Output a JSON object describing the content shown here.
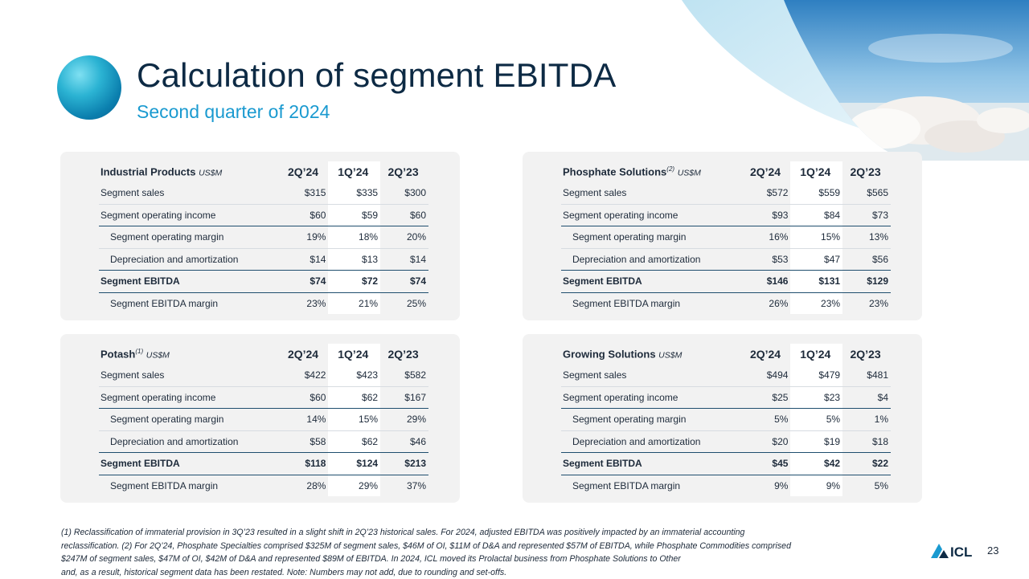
{
  "header": {
    "title": "Calculation of segment EBITDA",
    "subtitle": "Second quarter of 2024"
  },
  "columns": [
    "2Q’24",
    "1Q’24",
    "2Q’23"
  ],
  "unit": "US$M",
  "panels": [
    {
      "name": "Industrial Products",
      "note": "",
      "rows": [
        {
          "label": "Segment sales",
          "values": [
            "$315",
            "$335",
            "$300"
          ]
        },
        {
          "label": "Segment operating income",
          "values": [
            "$60",
            "$59",
            "$60"
          ]
        },
        {
          "label": "Segment operating margin",
          "values": [
            "19%",
            "18%",
            "20%"
          ]
        },
        {
          "label": "Depreciation and amortization",
          "values": [
            "$14",
            "$13",
            "$14"
          ]
        },
        {
          "label": "Segment EBITDA",
          "values": [
            "$74",
            "$72",
            "$74"
          ]
        },
        {
          "label": "Segment EBITDA margin",
          "values": [
            "23%",
            "21%",
            "25%"
          ]
        }
      ]
    },
    {
      "name": "Phosphate Solutions",
      "note": "(2)",
      "rows": [
        {
          "label": "Segment sales",
          "values": [
            "$572",
            "$559",
            "$565"
          ]
        },
        {
          "label": "Segment operating income",
          "values": [
            "$93",
            "$84",
            "$73"
          ]
        },
        {
          "label": "Segment operating margin",
          "values": [
            "16%",
            "15%",
            "13%"
          ]
        },
        {
          "label": "Depreciation and amortization",
          "values": [
            "$53",
            "$47",
            "$56"
          ]
        },
        {
          "label": "Segment EBITDA",
          "values": [
            "$146",
            "$131",
            "$129"
          ]
        },
        {
          "label": "Segment EBITDA margin",
          "values": [
            "26%",
            "23%",
            "23%"
          ]
        }
      ]
    },
    {
      "name": "Potash",
      "note": "(1)",
      "rows": [
        {
          "label": "Segment sales",
          "values": [
            "$422",
            "$423",
            "$582"
          ]
        },
        {
          "label": "Segment operating income",
          "values": [
            "$60",
            "$62",
            "$167"
          ]
        },
        {
          "label": "Segment operating margin",
          "values": [
            "14%",
            "15%",
            "29%"
          ]
        },
        {
          "label": "Depreciation and amortization",
          "values": [
            "$58",
            "$62",
            "$46"
          ]
        },
        {
          "label": "Segment EBITDA",
          "values": [
            "$118",
            "$124",
            "$213"
          ]
        },
        {
          "label": "Segment EBITDA margin",
          "values": [
            "28%",
            "29%",
            "37%"
          ]
        }
      ]
    },
    {
      "name": "Growing Solutions",
      "note": "",
      "rows": [
        {
          "label": "Segment sales",
          "values": [
            "$494",
            "$479",
            "$481"
          ]
        },
        {
          "label": "Segment operating income",
          "values": [
            "$25",
            "$23",
            "$4"
          ]
        },
        {
          "label": "Segment operating margin",
          "values": [
            "5%",
            "5%",
            "1%"
          ]
        },
        {
          "label": "Depreciation and amortization",
          "values": [
            "$20",
            "$19",
            "$18"
          ]
        },
        {
          "label": "Segment EBITDA",
          "values": [
            "$45",
            "$42",
            "$22"
          ]
        },
        {
          "label": "Segment EBITDA margin",
          "values": [
            "9%",
            "9%",
            "5%"
          ]
        }
      ]
    }
  ],
  "footnote": {
    "line1": "(1) Reclassification of immaterial provision in 3Q’23 resulted in a slight shift in 2Q’23 historical sales. For 2024, adjusted EBITDA was positively impacted by an immaterial accounting",
    "line2": "reclassification. (2) For 2Q’24, Phosphate Specialties comprised $325M of segment sales, $46M of OI, $11M of D&A and represented $57M of EBITDA, while Phosphate Commodities comprised",
    "line3": "$247M of segment sales, $47M of OI, $42M of D&A and represented $89M of EBITDA. In 2024, ICL moved its Prolactal business from Phosphate Solutions to Other",
    "line4": "and, as a result, historical segment data has been restated. Note: Numbers may not add, due to rounding and set-offs."
  },
  "footer": {
    "logo": "ICL",
    "page_number": "23"
  },
  "colors": {
    "title": "#0d2a44",
    "subtitle": "#1a9ad0",
    "panel_bg": "#f2f2f2",
    "rule": "#1f4e6e"
  }
}
